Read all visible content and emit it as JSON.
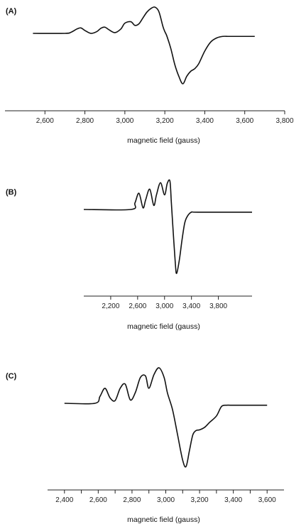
{
  "chart_data": [
    {
      "panel_label": "(A)",
      "type": "line",
      "xlabel": "magnetic field (gauss)",
      "xlim": [
        2400,
        3800
      ],
      "xticks": [
        2600,
        2800,
        3000,
        3200,
        3400,
        3600,
        3800
      ],
      "xtick_labels": [
        "2,600",
        "2,800",
        "3,000",
        "3,200",
        "3,400",
        "3,600",
        "3,800"
      ],
      "ylim": [
        -1,
        1
      ],
      "grid": false,
      "x": [
        2540,
        2700,
        2730,
        2760,
        2780,
        2800,
        2830,
        2860,
        2880,
        2900,
        2920,
        2950,
        2980,
        3000,
        3030,
        3050,
        3070,
        3090,
        3110,
        3130,
        3150,
        3170,
        3190,
        3200,
        3210,
        3230,
        3250,
        3270,
        3290,
        3310,
        3330,
        3350,
        3370,
        3400,
        3430,
        3460,
        3490,
        3520,
        3560,
        3650
      ],
      "y": [
        0.0,
        0.0,
        0.03,
        0.12,
        0.15,
        0.08,
        0.0,
        0.05,
        0.14,
        0.17,
        0.1,
        0.02,
        0.12,
        0.28,
        0.32,
        0.22,
        0.26,
        0.42,
        0.58,
        0.68,
        0.72,
        0.6,
        0.2,
        0.05,
        -0.05,
        -0.3,
        -0.62,
        -0.85,
        -1.0,
        -0.85,
        -0.75,
        -0.7,
        -0.6,
        -0.35,
        -0.17,
        -0.09,
        -0.06,
        -0.06,
        -0.06,
        -0.06
      ]
    },
    {
      "panel_label": "(B)",
      "type": "line",
      "xlabel": "magnetic field (gauss)",
      "xlim": [
        1800,
        4300
      ],
      "xticks": [
        2200,
        2600,
        3000,
        3400,
        3800
      ],
      "xtick_labels": [
        "2,200",
        "2,600",
        "3,000",
        "3,400",
        "3,800"
      ],
      "ylim": [
        -1,
        1
      ],
      "grid": false,
      "x": [
        1800,
        2500,
        2560,
        2620,
        2680,
        2720,
        2780,
        2840,
        2880,
        2940,
        3000,
        3040,
        3080,
        3100,
        3120,
        3160,
        3180,
        3220,
        3260,
        3300,
        3340,
        3400,
        3500,
        4300
      ],
      "y": [
        0.0,
        0.0,
        0.08,
        0.2,
        0.02,
        0.12,
        0.25,
        0.05,
        0.18,
        0.33,
        0.18,
        0.32,
        0.35,
        0.1,
        -0.2,
        -0.8,
        -0.95,
        -0.75,
        -0.45,
        -0.2,
        -0.1,
        -0.04,
        -0.04,
        -0.04
      ]
    },
    {
      "panel_label": "(C)",
      "type": "line",
      "xlabel": "magnetic field (gauss)",
      "xlim": [
        2300,
        3700
      ],
      "xticks": [
        2400,
        2500,
        2600,
        2700,
        2800,
        2900,
        3000,
        3100,
        3200,
        3300,
        3400,
        3500,
        3600
      ],
      "xtick_labels": [
        "2,400",
        "",
        "2,600",
        "",
        "2,800",
        "",
        "3,000",
        "",
        "3,200",
        "",
        "3,400",
        "",
        "3,600"
      ],
      "ylim": [
        -1,
        1
      ],
      "grid": false,
      "x": [
        2400,
        2580,
        2610,
        2640,
        2670,
        2700,
        2730,
        2760,
        2790,
        2820,
        2850,
        2880,
        2900,
        2930,
        2960,
        2990,
        3010,
        3040,
        3070,
        3100,
        3120,
        3140,
        3160,
        3180,
        3200,
        3230,
        3260,
        3300,
        3330,
        3360,
        3400,
        3600
      ],
      "y": [
        0.0,
        0.0,
        0.1,
        0.22,
        0.08,
        0.04,
        0.22,
        0.28,
        0.05,
        0.16,
        0.38,
        0.4,
        0.22,
        0.42,
        0.52,
        0.38,
        0.15,
        -0.1,
        -0.5,
        -0.9,
        -1.0,
        -0.75,
        -0.5,
        -0.43,
        -0.42,
        -0.38,
        -0.3,
        -0.2,
        -0.05,
        -0.03,
        -0.03,
        -0.03
      ]
    }
  ]
}
